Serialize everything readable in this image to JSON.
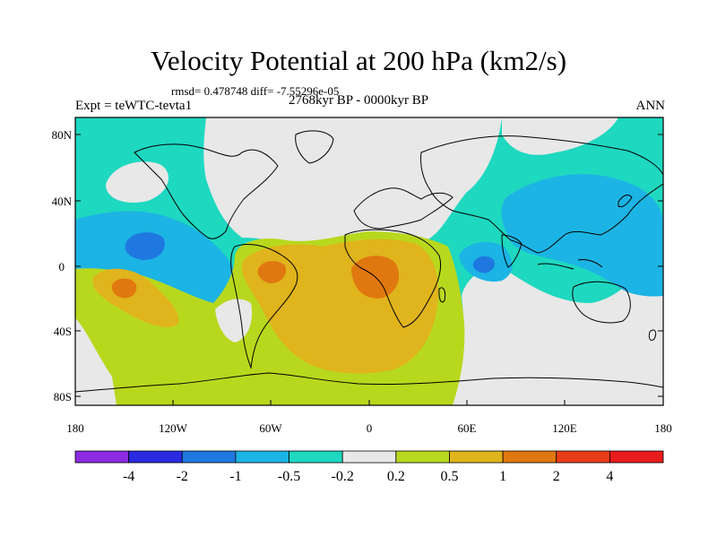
{
  "title": "Velocity Potential at 200 hPa (km2/s)",
  "stats": "rmsd= 0.478748  diff= -7.55296e-05",
  "experiment": "Expt = teWTC-tevta1",
  "period": "2768kyr BP - 0000kyr BP",
  "season": "ANN",
  "y_axis_labels": [
    "80N",
    "40N",
    "0",
    "40S",
    "80S"
  ],
  "x_axis_labels": [
    "180",
    "120W",
    "60W",
    "0",
    "60E",
    "120E",
    "180"
  ],
  "colorbar": {
    "labels": [
      "-4",
      "-2",
      "-1",
      "-0.5",
      "-0.2",
      "0.2",
      "0.5",
      "1",
      "2",
      "4"
    ],
    "colors": [
      "#8b2be2",
      "#2a2ae0",
      "#1e78e0",
      "#1cb4e4",
      "#1ed8c0",
      "#e8e8e8",
      "#b8d81e",
      "#e0b41c",
      "#e07810",
      "#e83c18",
      "#e81c1c"
    ]
  },
  "fields": {
    "neutral": "#e8e8e8",
    "teal": "#1ed8c0",
    "light_blue": "#1cb4e4",
    "mid_blue": "#1e78e0",
    "yellow_green": "#b8d81e",
    "orange": "#e0b41c",
    "dark_orange": "#e07810"
  }
}
